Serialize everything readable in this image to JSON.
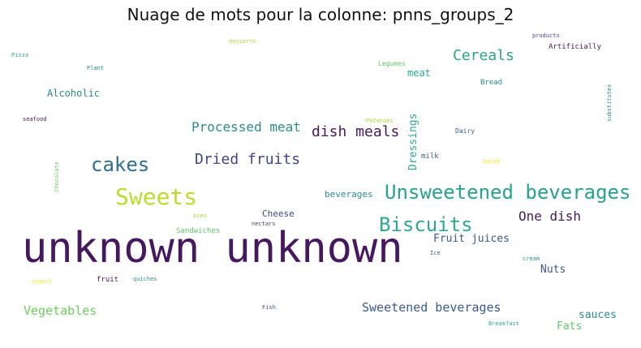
{
  "title": "Nuage de mots pour la colonne: pnns_groups_2",
  "chart_data": {
    "type": "wordcloud",
    "title": "Nuage de mots pour la colonne: pnns_groups_2",
    "words": [
      {
        "text": "unknown unknown",
        "weight": 1.0,
        "color": "#46195f"
      },
      {
        "text": "Unsweetened beverages",
        "weight": 0.3,
        "color": "#26a38c"
      },
      {
        "text": "Sweets",
        "weight": 0.35,
        "color": "#b8de29"
      },
      {
        "text": "Biscuits",
        "weight": 0.3,
        "color": "#2ea88e"
      },
      {
        "text": "cakes",
        "weight": 0.25,
        "color": "#2e6e8e"
      },
      {
        "text": "Cereals",
        "weight": 0.2,
        "color": "#2ca583"
      },
      {
        "text": "Dried fruits",
        "weight": 0.18,
        "color": "#414487"
      },
      {
        "text": "dish meals",
        "weight": 0.18,
        "color": "#46195f"
      },
      {
        "text": "Processed meat",
        "weight": 0.15,
        "color": "#2a8c8c"
      },
      {
        "text": "One dish",
        "weight": 0.15,
        "color": "#46195f"
      },
      {
        "text": "Dressings",
        "weight": 0.12,
        "color": "#2ea88e"
      },
      {
        "text": "Sweetened beverages",
        "weight": 0.14,
        "color": "#3b5a8c"
      },
      {
        "text": "Vegetables",
        "weight": 0.13,
        "color": "#6cce5a"
      },
      {
        "text": "Fruit juices",
        "weight": 0.11,
        "color": "#3b5a8c"
      },
      {
        "text": "Nuts",
        "weight": 0.1,
        "color": "#3b5a8c"
      },
      {
        "text": "sauces",
        "weight": 0.1,
        "color": "#2a8c8c"
      },
      {
        "text": "Fats",
        "weight": 0.1,
        "color": "#5ec962"
      },
      {
        "text": "Alcoholic",
        "weight": 0.09,
        "color": "#2a8c8c"
      },
      {
        "text": "meat",
        "weight": 0.09,
        "color": "#2ea88e"
      },
      {
        "text": "Cheese",
        "weight": 0.07,
        "color": "#414487"
      },
      {
        "text": "beverages",
        "weight": 0.07,
        "color": "#2a8c8c"
      },
      {
        "text": "Sandwiches",
        "weight": 0.06,
        "color": "#5ec962"
      },
      {
        "text": "fruit",
        "weight": 0.06,
        "color": "#46195f"
      },
      {
        "text": "Artificially",
        "weight": 0.06,
        "color": "#46195f"
      },
      {
        "text": "Bread",
        "weight": 0.05,
        "color": "#2a8c8c"
      },
      {
        "text": "milk",
        "weight": 0.05,
        "color": "#3b5a8c"
      },
      {
        "text": "Dairy",
        "weight": 0.045,
        "color": "#3b5a8c"
      },
      {
        "text": "Legumes",
        "weight": 0.045,
        "color": "#5ec962"
      },
      {
        "text": "products",
        "weight": 0.04,
        "color": "#414487"
      },
      {
        "text": "substitutes",
        "weight": 0.04,
        "color": "#2a8c8c"
      },
      {
        "text": "Potatoes",
        "weight": 0.04,
        "color": "#a8db34"
      },
      {
        "text": "based",
        "weight": 0.04,
        "color": "#fde725"
      },
      {
        "text": "desserts",
        "weight": 0.04,
        "color": "#a8db34"
      },
      {
        "text": "Pizza",
        "weight": 0.04,
        "color": "#2ea88e"
      },
      {
        "text": "Plant",
        "weight": 0.04,
        "color": "#2a8c8c"
      },
      {
        "text": "seafood",
        "weight": 0.04,
        "color": "#46195f"
      },
      {
        "text": "Chocolate",
        "weight": 0.04,
        "color": "#6cce5a"
      },
      {
        "text": "pies",
        "weight": 0.04,
        "color": "#a8db34"
      },
      {
        "text": "nectars",
        "weight": 0.04,
        "color": "#414487"
      },
      {
        "text": "Ice",
        "weight": 0.04,
        "color": "#3b5a8c"
      },
      {
        "text": "cream",
        "weight": 0.04,
        "color": "#2a8c8c"
      },
      {
        "text": "yogurt",
        "weight": 0.04,
        "color": "#fde725"
      },
      {
        "text": "quiches",
        "weight": 0.04,
        "color": "#2a8c8c"
      },
      {
        "text": "Fish",
        "weight": 0.04,
        "color": "#3b5a8c"
      },
      {
        "text": "Breakfast",
        "weight": 0.04,
        "color": "#2ea88e"
      }
    ]
  }
}
